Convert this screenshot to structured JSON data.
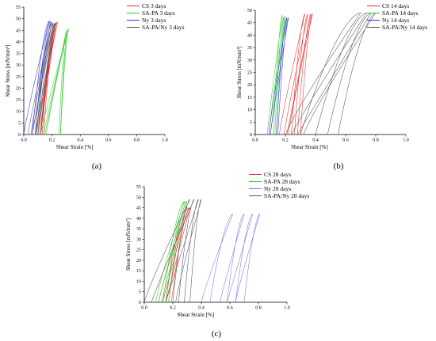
{
  "chart_data": [
    {
      "type": "line",
      "panel_label": "(a)",
      "xlabel": "Shear Strain [%]",
      "ylabel": "Shear Stress [mN/mm²]",
      "xlim": [
        0,
        1.0
      ],
      "ylim": [
        0,
        55
      ],
      "xticks": [
        "0.0",
        "0.2",
        "0.4",
        "0.6",
        "0.8",
        "1.0"
      ],
      "yticks": [
        "0",
        "5",
        "10",
        "15",
        "20",
        "25",
        "30",
        "35",
        "40",
        "45",
        "50",
        "55"
      ],
      "legend_position": "top-right",
      "series": [
        {
          "name": "CS 3 days",
          "color": "#e32d2d",
          "loops": [
            {
              "x0": 0.09,
              "xmax": 0.24,
              "xmin": 0.12,
              "peak": 48.5
            },
            {
              "x0": 0.1,
              "xmax": 0.23,
              "xmin": 0.12,
              "peak": 48.0
            },
            {
              "x0": 0.11,
              "xmax": 0.22,
              "xmin": 0.13,
              "peak": 47.5
            },
            {
              "x0": 0.12,
              "xmax": 0.23,
              "xmin": 0.14,
              "peak": 48.5
            }
          ]
        },
        {
          "name": "SA-PA 3 days",
          "color": "#33cc33",
          "loops": [
            {
              "x0": 0.12,
              "xmax": 0.32,
              "xmin": 0.26,
              "peak": 45.5
            },
            {
              "x0": 0.14,
              "xmax": 0.31,
              "xmin": 0.26,
              "peak": 45.0
            },
            {
              "x0": 0.15,
              "xmax": 0.3,
              "xmin": 0.25,
              "peak": 44.5
            },
            {
              "x0": 0.16,
              "xmax": 0.31,
              "xmin": 0.26,
              "peak": 45.5
            }
          ]
        },
        {
          "name": "Ny 3 days",
          "color": "#3333dd",
          "loops": [
            {
              "x0": 0.0,
              "xmax": 0.18,
              "xmin": 0.06,
              "peak": 49.0
            },
            {
              "x0": 0.05,
              "xmax": 0.19,
              "xmin": 0.08,
              "peak": 49.0
            },
            {
              "x0": 0.06,
              "xmax": 0.2,
              "xmin": 0.09,
              "peak": 48.5
            }
          ]
        },
        {
          "name": "SA-PA/Ny 3 days",
          "color": "#555555",
          "loops": [
            {
              "x0": 0.03,
              "xmax": 0.2,
              "xmin": 0.08,
              "peak": 48.0
            },
            {
              "x0": 0.06,
              "xmax": 0.21,
              "xmin": 0.09,
              "peak": 48.0
            },
            {
              "x0": 0.08,
              "xmax": 0.22,
              "xmin": 0.1,
              "peak": 47.5
            },
            {
              "x0": 0.1,
              "xmax": 0.22,
              "xmin": 0.12,
              "peak": 48.0
            }
          ]
        }
      ]
    },
    {
      "type": "line",
      "panel_label": "(b)",
      "xlabel": "Shear Strain [%]",
      "ylabel": "Shear Stress [mN/mm²]",
      "xlim": [
        0,
        1.0
      ],
      "ylim": [
        0,
        50
      ],
      "xticks": [
        "0.0",
        "0.2",
        "0.4",
        "0.6",
        "0.8",
        "1.0"
      ],
      "yticks": [
        "0",
        "5",
        "10",
        "15",
        "20",
        "25",
        "30",
        "35",
        "40",
        "45",
        "50"
      ],
      "legend_position": "top-right",
      "series": [
        {
          "name": "CS 14 days",
          "color": "#e32d2d",
          "loops": [
            {
              "x0": 0.16,
              "xmax": 0.33,
              "xmin": 0.24,
              "peak": 48.5
            },
            {
              "x0": 0.19,
              "xmax": 0.35,
              "xmin": 0.26,
              "peak": 48.5
            },
            {
              "x0": 0.21,
              "xmax": 0.37,
              "xmin": 0.28,
              "peak": 48.5
            },
            {
              "x0": 0.22,
              "xmax": 0.38,
              "xmin": 0.3,
              "peak": 48.5
            }
          ]
        },
        {
          "name": "SA-PA 14 days",
          "color": "#33cc33",
          "loops": [
            {
              "x0": 0.08,
              "xmax": 0.18,
              "xmin": 0.12,
              "peak": 48.0
            },
            {
              "x0": 0.09,
              "xmax": 0.19,
              "xmin": 0.13,
              "peak": 47.5
            },
            {
              "x0": 0.1,
              "xmax": 0.2,
              "xmin": 0.14,
              "peak": 47.5
            }
          ]
        },
        {
          "name": "Ny 14 days",
          "color": "#3333dd",
          "loops": [
            {
              "x0": 0.09,
              "xmax": 0.21,
              "xmin": 0.14,
              "peak": 47.0
            },
            {
              "x0": 0.1,
              "xmax": 0.22,
              "xmin": 0.15,
              "peak": 47.0
            }
          ]
        },
        {
          "name": "SA-PA/Ny 14 days",
          "color": "#555555",
          "loops": [
            {
              "x0": 0.2,
              "xmax": 0.7,
              "xmin": 0.3,
              "peak": 49.0
            },
            {
              "x0": 0.24,
              "xmax": 0.74,
              "xmin": 0.4,
              "peak": 49.0
            },
            {
              "x0": 0.28,
              "xmax": 0.77,
              "xmin": 0.48,
              "peak": 49.0
            },
            {
              "x0": 0.32,
              "xmax": 0.8,
              "xmin": 0.55,
              "peak": 49.0
            }
          ]
        }
      ]
    },
    {
      "type": "line",
      "panel_label": "(c)",
      "xlabel": "Shear Strain [%]",
      "ylabel": "Shear Stress [mN/mm²]",
      "xlim": [
        0,
        1.0
      ],
      "ylim": [
        0,
        55
      ],
      "xticks": [
        "0.0",
        "0.2",
        "0.4",
        "0.6",
        "0.8",
        "1.0"
      ],
      "yticks": [
        "0",
        "5",
        "10",
        "15",
        "20",
        "25",
        "30",
        "35",
        "40",
        "45",
        "50",
        "55"
      ],
      "legend_position": "top-right",
      "series": [
        {
          "name": "CS 28 days",
          "color": "#e32d2d",
          "loops": [
            {
              "x0": 0.1,
              "xmax": 0.3,
              "xmin": 0.15,
              "peak": 45.5
            },
            {
              "x0": 0.13,
              "xmax": 0.31,
              "xmin": 0.17,
              "peak": 45.0
            },
            {
              "x0": 0.15,
              "xmax": 0.32,
              "xmin": 0.19,
              "peak": 45.0
            }
          ]
        },
        {
          "name": "SA-PA 28 days",
          "color": "#33cc33",
          "loops": [
            {
              "x0": 0.08,
              "xmax": 0.28,
              "xmin": 0.13,
              "peak": 48.0
            },
            {
              "x0": 0.1,
              "xmax": 0.29,
              "xmin": 0.15,
              "peak": 48.0
            },
            {
              "x0": 0.12,
              "xmax": 0.3,
              "xmin": 0.17,
              "peak": 48.0
            }
          ]
        },
        {
          "name": "Ny 28 days",
          "color": "#7777ee",
          "loops": [
            {
              "x0": 0.4,
              "xmax": 0.62,
              "xmin": 0.46,
              "peak": 42.0
            },
            {
              "x0": 0.53,
              "xmax": 0.7,
              "xmin": 0.58,
              "peak": 42.0
            },
            {
              "x0": 0.58,
              "xmax": 0.76,
              "xmin": 0.64,
              "peak": 42.0
            },
            {
              "x0": 0.64,
              "xmax": 0.81,
              "xmin": 0.7,
              "peak": 42.0
            }
          ]
        },
        {
          "name": "SA-PA/Ny 28 days",
          "color": "#555555",
          "loops": [
            {
              "x0": 0.0,
              "xmax": 0.32,
              "xmin": 0.2,
              "peak": 49.0
            },
            {
              "x0": 0.05,
              "xmax": 0.35,
              "xmin": 0.24,
              "peak": 49.0
            },
            {
              "x0": 0.15,
              "xmax": 0.38,
              "xmin": 0.28,
              "peak": 49.0
            },
            {
              "x0": 0.22,
              "xmax": 0.4,
              "xmin": 0.32,
              "peak": 49.0
            }
          ]
        }
      ]
    }
  ]
}
